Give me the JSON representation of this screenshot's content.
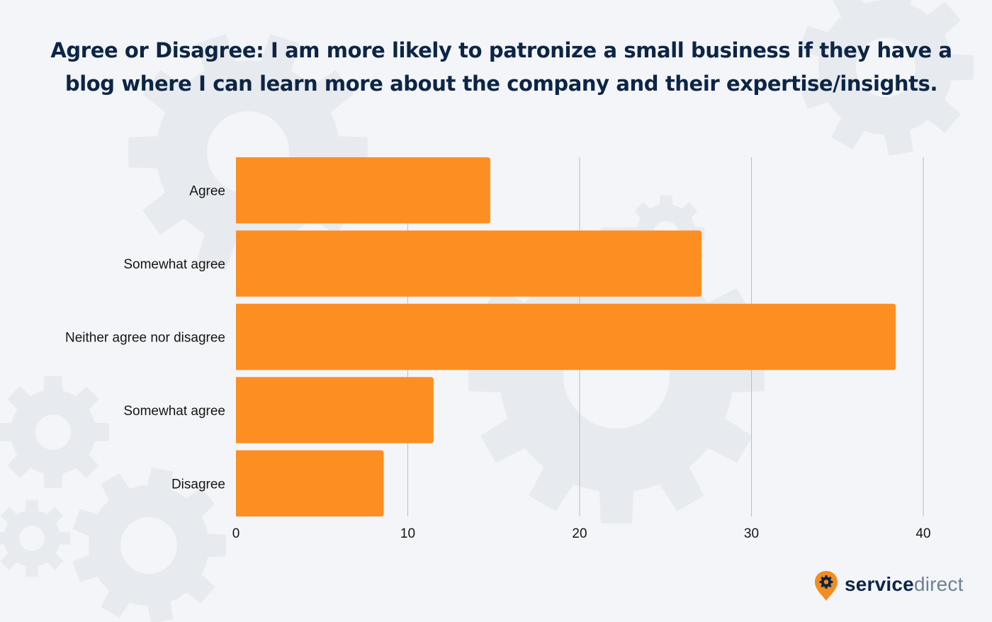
{
  "title": "Agree or Disagree: I am more likely to patronize a small business if they have a blog where I can learn more about the company and their expertise/insights.",
  "colors": {
    "background": "#f3f5f8",
    "bar": "#fd8e22",
    "grid": "#b9bec6",
    "title": "#0d2545",
    "gears": "#e7eaef",
    "logo_pin": "#f28d22",
    "logo_dark": "#0d2545",
    "logo_light": "#6f8096"
  },
  "chart_data": {
    "type": "bar",
    "orientation": "horizontal",
    "title": "Agree or Disagree: I am more likely to patronize a small business if they have a blog where I can learn more about the company and their expertise/insights.",
    "categories": [
      "Agree",
      "Somewhat agree",
      "Neither agree nor disagree",
      "Somewhat agree",
      "Disagree"
    ],
    "values": [
      14.8,
      27.1,
      38.4,
      11.5,
      8.6
    ],
    "xlim": [
      0,
      40
    ],
    "xticks": [
      0,
      10,
      20,
      30,
      40
    ],
    "xlabel": "",
    "ylabel": "",
    "grid": "vertical",
    "legend": "none"
  },
  "logo": {
    "bold": "service",
    "light": "direct",
    "icon": "gear-pin-icon"
  }
}
